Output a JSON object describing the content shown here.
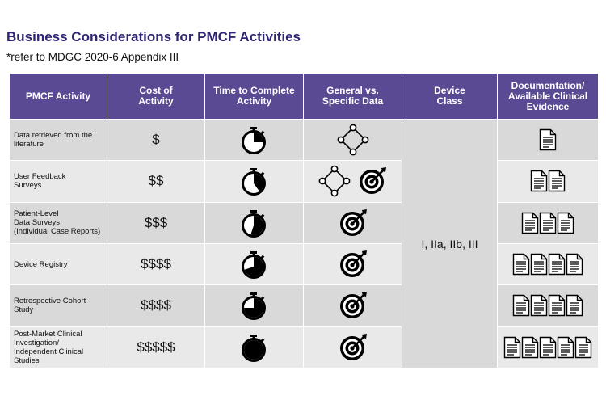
{
  "title": "Business Considerations for PMCF Activities",
  "subtitle": "*refer to MDGC 2020-6 Appendix III",
  "headers": {
    "activity": "PMCF Activity",
    "cost": "Cost of\nActivity",
    "time": "Time to Complete\nActivity",
    "data_type": "General vs.\nSpecific Data",
    "device_class": "Device\nClass",
    "documentation": "Documentation/\nAvailable Clinical\nEvidence"
  },
  "device_class_value": "I, IIa, IIb, III",
  "rows": [
    {
      "activity": "Data retrieved from the\nliterature",
      "cost": "$",
      "time_fraction": 0.25,
      "data_icons": [
        "network-icon"
      ],
      "documents": 1
    },
    {
      "activity": "User Feedback\nSurveys",
      "cost": "$$",
      "time_fraction": 0.4,
      "data_icons": [
        "network-icon",
        "target-icon"
      ],
      "documents": 2
    },
    {
      "activity": "Patient-Level\nData Surveys\n(Individual Case Reports)",
      "cost": "$$$",
      "time_fraction": 0.55,
      "data_icons": [
        "target-icon"
      ],
      "documents": 3
    },
    {
      "activity": "Device Registry",
      "cost": "$$$$",
      "time_fraction": 0.7,
      "data_icons": [
        "target-icon"
      ],
      "documents": 4
    },
    {
      "activity": "Retrospective Cohort\nStudy",
      "cost": "$$$$",
      "time_fraction": 0.75,
      "data_icons": [
        "target-icon"
      ],
      "documents": 4
    },
    {
      "activity": "Post-Market Clinical\nInvestigation/\nIndependent Clinical\nStudies",
      "cost": "$$$$$",
      "time_fraction": 1.0,
      "data_icons": [
        "target-icon"
      ],
      "documents": 5
    }
  ]
}
